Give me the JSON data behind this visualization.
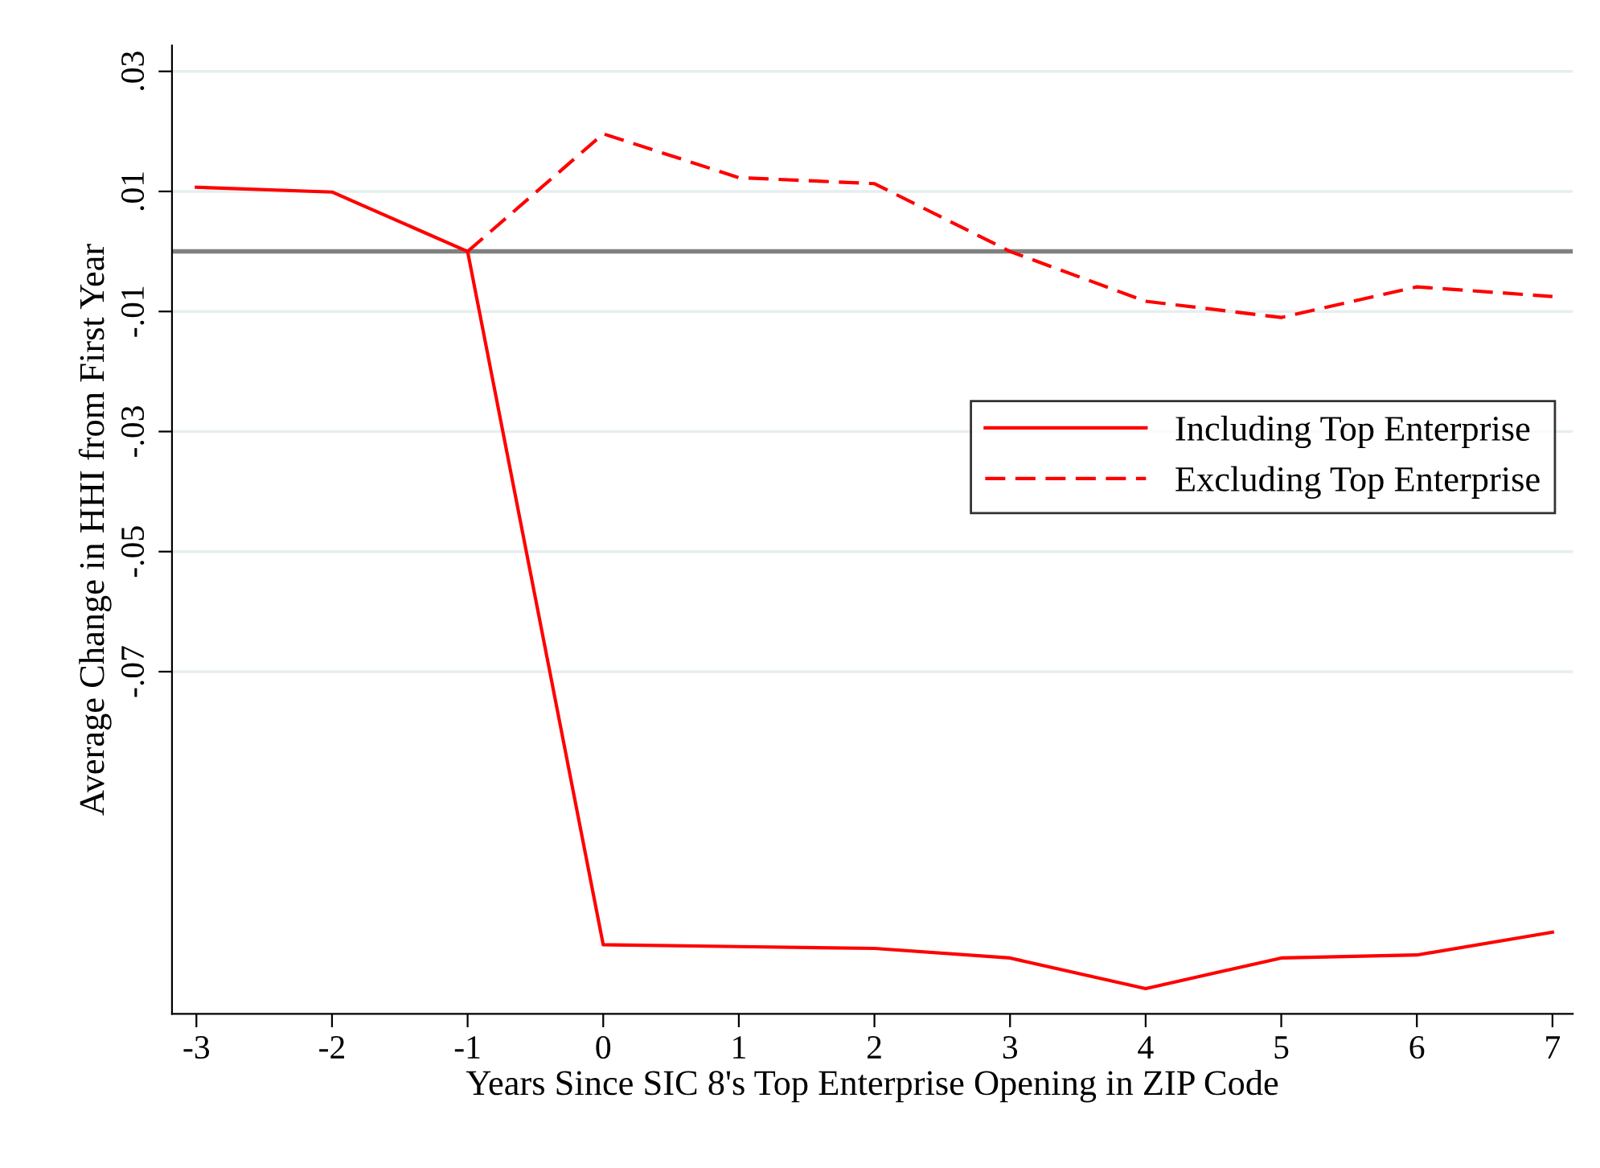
{
  "chart_data": {
    "type": "line",
    "xlabel": "Years Since SIC 8's Top Enterprise Opening in ZIP Code",
    "ylabel": "Average Change in HHI from First Year",
    "x": [
      -3,
      -2,
      -1,
      0,
      1,
      2,
      3,
      4,
      5,
      6,
      7
    ],
    "series": [
      {
        "name": "Including Top Enterprise",
        "color": "#ff0000",
        "line_style": "solid",
        "values": [
          0.0107,
          0.0099,
          0,
          -0.1155,
          -0.1158,
          -0.1161,
          -0.1177,
          -0.1228,
          -0.1177,
          -0.1172,
          -0.1134
        ]
      },
      {
        "name": "Excluding Top Enterprise",
        "color": "#ff0000",
        "line_style": "dashed",
        "values": [
          null,
          null,
          0,
          0.0196,
          0.0123,
          0.0113,
          0,
          -0.0083,
          -0.011,
          -0.0059,
          -0.0075
        ]
      }
    ],
    "xlim": [
      -3.18,
      7.15
    ],
    "xticks": [
      -3,
      -2,
      -1,
      0,
      1,
      2,
      3,
      4,
      5,
      6,
      7
    ],
    "ylim": [
      -0.127,
      0.0343
    ],
    "yticks": [
      {
        "value": 0.03,
        "label": ".03"
      },
      {
        "value": 0.01,
        "label": ".01"
      },
      {
        "value": -0.01,
        "label": "-.01"
      },
      {
        "value": -0.03,
        "label": "-.03"
      },
      {
        "value": -0.05,
        "label": "-.05"
      },
      {
        "value": -0.07,
        "label": "-.07"
      }
    ],
    "ref_lines": [
      {
        "axis": "y",
        "value": 0,
        "label": null,
        "color": "#808080"
      }
    ],
    "grid": "y",
    "legend": "right",
    "marker": "none"
  }
}
